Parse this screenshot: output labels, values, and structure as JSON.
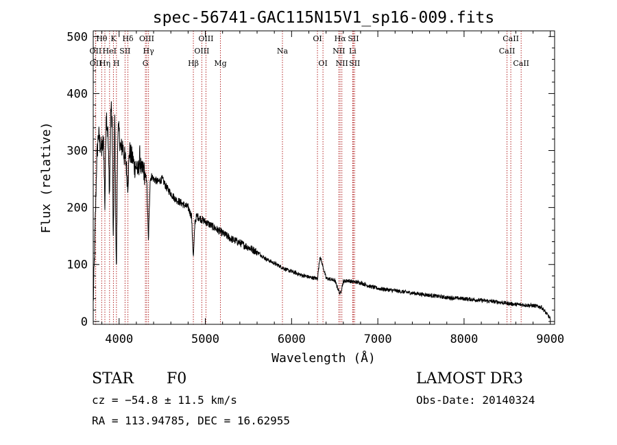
{
  "chart_data": {
    "type": "line",
    "title": "spec-56741-GAC115N15V1_sp16-009.fits",
    "xlabel": "Wavelength (Å)",
    "ylabel": "Flux (relative)",
    "xlim": [
      3700,
      9050
    ],
    "ylim": [
      -5,
      510
    ],
    "xticks": [
      4000,
      5000,
      6000,
      7000,
      8000,
      9000
    ],
    "xtick_labels": [
      "4000",
      "5000",
      "6000",
      "7000",
      "8000",
      "9000"
    ],
    "yticks": [
      0,
      100,
      200,
      300,
      400,
      500
    ],
    "ytick_labels": [
      "0",
      "100",
      "200",
      "300",
      "400",
      "500"
    ],
    "series": [
      {
        "name": "spectrum",
        "color": "#000000",
        "x": [
          3700,
          3720,
          3740,
          3760,
          3780,
          3800,
          3820,
          3835,
          3850,
          3870,
          3889,
          3905,
          3920,
          3933,
          3950,
          3968,
          3985,
          4000,
          4020,
          4040,
          4060,
          4080,
          4101,
          4120,
          4140,
          4160,
          4180,
          4200,
          4220,
          4240,
          4260,
          4280,
          4300,
          4320,
          4340,
          4360,
          4380,
          4400,
          4450,
          4500,
          4550,
          4600,
          4650,
          4700,
          4750,
          4800,
          4840,
          4861,
          4880,
          4900,
          4950,
          5000,
          5050,
          5100,
          5150,
          5200,
          5300,
          5400,
          5500,
          5600,
          5700,
          5800,
          5890,
          5950,
          6000,
          6100,
          6200,
          6300,
          6330,
          6400,
          6500,
          6563,
          6600,
          6650,
          6700,
          6800,
          6900,
          7000,
          7200,
          7400,
          7600,
          7800,
          8000,
          8200,
          8400,
          8600,
          8800,
          8900,
          8950,
          9000
        ],
        "values": [
          30,
          150,
          280,
          330,
          310,
          300,
          320,
          200,
          370,
          330,
          220,
          380,
          350,
          130,
          360,
          80,
          340,
          330,
          300,
          310,
          290,
          280,
          240,
          300,
          290,
          285,
          270,
          275,
          260,
          290,
          260,
          270,
          255,
          250,
          140,
          250,
          255,
          250,
          245,
          250,
          235,
          225,
          215,
          210,
          205,
          200,
          185,
          110,
          175,
          185,
          180,
          175,
          170,
          165,
          160,
          155,
          145,
          138,
          130,
          122,
          110,
          102,
          95,
          90,
          88,
          82,
          78,
          75,
          115,
          76,
          72,
          48,
          70,
          72,
          70,
          68,
          62,
          58,
          54,
          50,
          46,
          42,
          40,
          37,
          34,
          30,
          28,
          25,
          15,
          5
        ]
      }
    ],
    "lines": [
      {
        "label": "OII",
        "wavelength": 3727,
        "row": 2
      },
      {
        "label": "OII",
        "wavelength": 3729,
        "row": 3
      },
      {
        "label": "Hθ",
        "wavelength": 3798,
        "row": 1
      },
      {
        "label": "Hη",
        "wavelength": 3835,
        "row": 3
      },
      {
        "label": "HeI",
        "wavelength": 3889,
        "row": 2
      },
      {
        "label": "K",
        "wavelength": 3934,
        "row": 1
      },
      {
        "label": "H",
        "wavelength": 3969,
        "row": 3
      },
      {
        "label": "SII",
        "wavelength": 4069,
        "row": 2
      },
      {
        "label": "Hδ",
        "wavelength": 4102,
        "row": 1
      },
      {
        "label": "G",
        "wavelength": 4305,
        "row": 3
      },
      {
        "label": "OIII",
        "wavelength": 4320,
        "row": 1
      },
      {
        "label": "Hγ",
        "wavelength": 4341,
        "row": 2
      },
      {
        "label": "Hβ",
        "wavelength": 4861,
        "row": 3
      },
      {
        "label": "OIII",
        "wavelength": 4959,
        "row": 2
      },
      {
        "label": "OIII",
        "wavelength": 5007,
        "row": 1
      },
      {
        "label": "Mg",
        "wavelength": 5175,
        "row": 3
      },
      {
        "label": "Na",
        "wavelength": 5894,
        "row": 2
      },
      {
        "label": "OI",
        "wavelength": 6300,
        "row": 1
      },
      {
        "label": "OI",
        "wavelength": 6364,
        "row": 3
      },
      {
        "label": "NII",
        "wavelength": 6548,
        "row": 2
      },
      {
        "label": "Hα",
        "wavelength": 6563,
        "row": 1
      },
      {
        "label": "NII",
        "wavelength": 6583,
        "row": 3
      },
      {
        "label": "Li",
        "wavelength": 6708,
        "row": 2
      },
      {
        "label": "SII",
        "wavelength": 6717,
        "row": 1
      },
      {
        "label": "SII",
        "wavelength": 6731,
        "row": 3
      },
      {
        "label": "CaII",
        "wavelength": 8498,
        "row": 2
      },
      {
        "label": "CaII",
        "wavelength": 8542,
        "row": 1
      },
      {
        "label": "CaII",
        "wavelength": 8662,
        "row": 3
      }
    ],
    "line_color": "#b22222"
  },
  "info": {
    "class": "STAR",
    "subclass": "F0",
    "survey": "LAMOST DR3",
    "cz": "cz = −54.8 ± 11.5 km/s",
    "obs_date": "Obs-Date: 20140324",
    "coords": "RA = 113.94785, DEC =  16.62955"
  }
}
